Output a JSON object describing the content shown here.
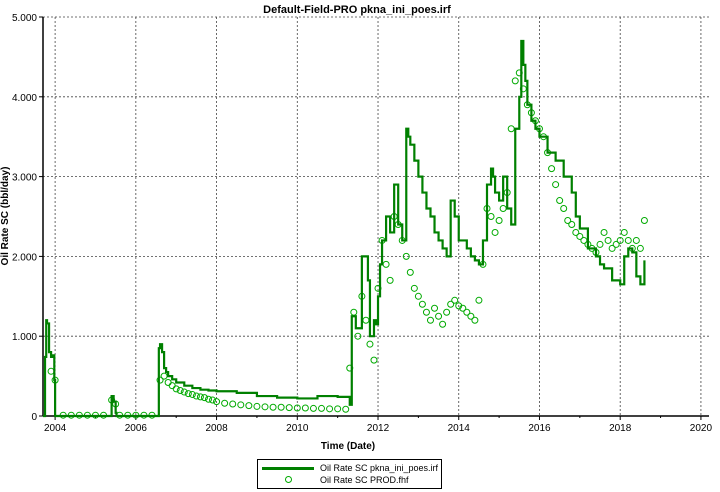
{
  "chart_data": {
    "type": "line",
    "title": "Default-Field-PRO pkna_ini_poes.irf",
    "xlabel": "Time (Date)",
    "ylabel": "Oil Rate SC (bbl/day)",
    "xlim": [
      2003.7,
      2020.2
    ],
    "ylim": [
      0,
      5000
    ],
    "x_ticks": [
      2004,
      2006,
      2008,
      2010,
      2012,
      2014,
      2016,
      2018,
      2020
    ],
    "x_tick_labels": [
      "2004",
      "2006",
      "2008",
      "2010",
      "2012",
      "2014",
      "2016",
      "2018",
      "2020"
    ],
    "y_ticks": [
      0,
      1000,
      2000,
      3000,
      4000,
      5000
    ],
    "y_tick_labels": [
      "0",
      "1.000",
      "2.000",
      "3.000",
      "4.000",
      "5.000"
    ],
    "grid": true,
    "legend_position": "bottom-center",
    "colors": {
      "simulated": "#008000",
      "observed": "#00aa00"
    },
    "series": [
      {
        "name": "Oil Rate SC pkna_ini_poes.irf",
        "style": "step-line",
        "x": [
          2003.7,
          2003.75,
          2003.78,
          2003.8,
          2003.85,
          2003.9,
          2003.95,
          2003.98,
          2004.0,
          2004.02,
          2005.35,
          2005.4,
          2005.45,
          2005.5,
          2005.52,
          2006.55,
          2006.57,
          2006.6,
          2006.65,
          2006.7,
          2006.75,
          2006.8,
          2006.9,
          2007.0,
          2007.2,
          2007.4,
          2007.6,
          2007.8,
          2008.0,
          2008.5,
          2009.0,
          2009.5,
          2010.0,
          2010.5,
          2011.0,
          2011.3,
          2011.35,
          2011.45,
          2011.6,
          2011.75,
          2011.8,
          2011.9,
          2011.95,
          2012.0,
          2012.05,
          2012.1,
          2012.2,
          2012.3,
          2012.4,
          2012.5,
          2012.6,
          2012.7,
          2012.75,
          2012.8,
          2012.9,
          2013.0,
          2013.1,
          2013.2,
          2013.3,
          2013.4,
          2013.5,
          2013.6,
          2013.7,
          2013.8,
          2013.9,
          2014.0,
          2014.2,
          2014.3,
          2014.4,
          2014.5,
          2014.6,
          2014.7,
          2014.8,
          2014.85,
          2014.9,
          2015.0,
          2015.1,
          2015.2,
          2015.3,
          2015.4,
          2015.5,
          2015.55,
          2015.6,
          2015.65,
          2015.7,
          2015.8,
          2015.9,
          2016.0,
          2016.2,
          2016.4,
          2016.6,
          2016.8,
          2016.9,
          2017.0,
          2017.2,
          2017.4,
          2017.5,
          2017.6,
          2017.8,
          2018.0,
          2018.1,
          2018.2,
          2018.3,
          2018.4,
          2018.5,
          2018.6
        ],
        "values": [
          0,
          740,
          1200,
          1160,
          800,
          740,
          760,
          450,
          0,
          0,
          0,
          250,
          180,
          40,
          0,
          0,
          850,
          900,
          800,
          600,
          550,
          500,
          460,
          420,
          380,
          350,
          330,
          320,
          310,
          290,
          250,
          230,
          220,
          250,
          240,
          140,
          1250,
          1100,
          2000,
          1700,
          1000,
          1200,
          1150,
          1500,
          1900,
          2200,
          2500,
          2300,
          2900,
          2400,
          2200,
          3600,
          3500,
          3400,
          3200,
          3000,
          2800,
          2600,
          2500,
          2300,
          2200,
          2100,
          2000,
          2700,
          2500,
          2200,
          2100,
          2000,
          1950,
          1900,
          2200,
          2900,
          3100,
          3000,
          2800,
          2700,
          3000,
          2600,
          2400,
          3600,
          4000,
          4700,
          4400,
          4200,
          3900,
          3700,
          3600,
          3500,
          3300,
          3200,
          3000,
          2800,
          2500,
          2350,
          2100,
          2000,
          1900,
          1850,
          1700,
          1650,
          2000,
          2100,
          2050,
          1750,
          1650,
          1950
        ]
      },
      {
        "name": "Oil Rate SC PROD.fhf",
        "style": "markers",
        "x": [
          2003.9,
          2004.0,
          2004.2,
          2004.4,
          2004.6,
          2004.8,
          2005.0,
          2005.2,
          2005.4,
          2005.5,
          2005.6,
          2005.8,
          2006.0,
          2006.2,
          2006.4,
          2006.6,
          2006.7,
          2006.8,
          2006.9,
          2007.0,
          2007.1,
          2007.2,
          2007.3,
          2007.4,
          2007.5,
          2007.6,
          2007.7,
          2007.8,
          2007.9,
          2008.0,
          2008.2,
          2008.4,
          2008.6,
          2008.8,
          2009.0,
          2009.2,
          2009.4,
          2009.6,
          2009.8,
          2010.0,
          2010.2,
          2010.4,
          2010.6,
          2010.8,
          2011.0,
          2011.2,
          2011.3,
          2011.4,
          2011.5,
          2011.6,
          2011.7,
          2011.8,
          2011.9,
          2012.0,
          2012.1,
          2012.2,
          2012.3,
          2012.4,
          2012.5,
          2012.6,
          2012.7,
          2012.8,
          2012.9,
          2013.0,
          2013.1,
          2013.2,
          2013.3,
          2013.4,
          2013.5,
          2013.6,
          2013.7,
          2013.8,
          2013.9,
          2014.0,
          2014.1,
          2014.2,
          2014.3,
          2014.4,
          2014.5,
          2014.6,
          2014.7,
          2014.8,
          2014.9,
          2015.0,
          2015.1,
          2015.2,
          2015.3,
          2015.4,
          2015.5,
          2015.6,
          2015.7,
          2015.8,
          2015.9,
          2016.0,
          2016.1,
          2016.2,
          2016.3,
          2016.4,
          2016.5,
          2016.6,
          2016.7,
          2016.8,
          2016.9,
          2017.0,
          2017.1,
          2017.2,
          2017.3,
          2017.4,
          2017.5,
          2017.6,
          2017.7,
          2017.8,
          2017.9,
          2018.0,
          2018.1,
          2018.2,
          2018.3,
          2018.4,
          2018.5,
          2018.6
        ],
        "values": [
          560,
          450,
          10,
          10,
          10,
          10,
          10,
          10,
          200,
          150,
          10,
          10,
          10,
          10,
          10,
          450,
          500,
          420,
          380,
          340,
          320,
          300,
          280,
          270,
          250,
          240,
          230,
          210,
          200,
          180,
          160,
          150,
          140,
          130,
          120,
          115,
          110,
          110,
          105,
          100,
          100,
          95,
          95,
          90,
          90,
          85,
          600,
          1300,
          1000,
          1500,
          1200,
          900,
          700,
          1600,
          2200,
          1900,
          1700,
          2500,
          2400,
          2200,
          2000,
          1800,
          1600,
          1500,
          1400,
          1300,
          1200,
          1350,
          1250,
          1150,
          1300,
          1400,
          1450,
          1380,
          1350,
          1300,
          1250,
          1200,
          1450,
          1900,
          2600,
          2500,
          2300,
          2450,
          2600,
          2800,
          3600,
          4200,
          4300,
          4100,
          3900,
          3800,
          3700,
          3600,
          3500,
          3300,
          3100,
          2900,
          2700,
          2600,
          2450,
          2400,
          2300,
          2250,
          2200,
          2150,
          2100,
          2050,
          2150,
          2300,
          2200,
          2100,
          2150,
          2200,
          2300,
          2200,
          2100,
          2200,
          2100,
          2450
        ]
      }
    ]
  }
}
